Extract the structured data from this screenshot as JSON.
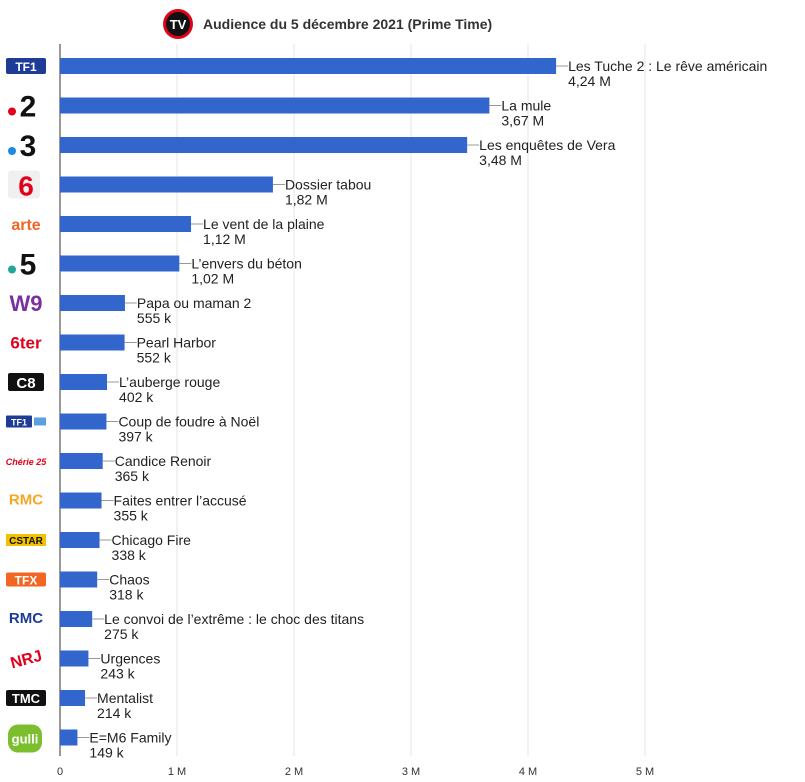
{
  "header": {
    "logo_text": "TV",
    "title": "Audience du 5 décembre 2021 (Prime Time)"
  },
  "colors": {
    "bar": "#3366cc",
    "grid": "#e6e6e6",
    "axis": "#333333",
    "leader": "#999999"
  },
  "chart_data": {
    "type": "bar",
    "orientation": "horizontal",
    "title": "Audience du 5 décembre 2021 (Prime Time)",
    "xlim": [
      0,
      5000000
    ],
    "grid": true,
    "x_ticks": [
      {
        "value": 0,
        "label": "0"
      },
      {
        "value": 1000000,
        "label": "1 M"
      },
      {
        "value": 2000000,
        "label": "2 M"
      },
      {
        "value": 3000000,
        "label": "3 M"
      },
      {
        "value": 4000000,
        "label": "4 M"
      },
      {
        "value": 5000000,
        "label": "5 M"
      }
    ],
    "bars": [
      {
        "channel": "TF1",
        "logo": "tf1-logo",
        "program": "Les Tuche 2 : Le rêve américain",
        "value": 4240000,
        "value_label": "4,24 M"
      },
      {
        "channel": "2",
        "logo": "france2-logo",
        "program": "La mule",
        "value": 3670000,
        "value_label": "3,67 M"
      },
      {
        "channel": "3",
        "logo": "france3-logo",
        "program": "Les enquêtes de Vera",
        "value": 3480000,
        "value_label": "3,48 M"
      },
      {
        "channel": "6",
        "logo": "m6-logo",
        "program": "Dossier tabou",
        "value": 1820000,
        "value_label": "1,82 M"
      },
      {
        "channel": "arte",
        "logo": "arte-logo",
        "program": "Le vent de la plaine",
        "value": 1120000,
        "value_label": "1,12 M"
      },
      {
        "channel": "5",
        "logo": "france5-logo",
        "program": "L’envers du béton",
        "value": 1020000,
        "value_label": "1,02 M"
      },
      {
        "channel": "W9",
        "logo": "w9-logo",
        "program": "Papa ou maman 2",
        "value": 555000,
        "value_label": "555 k"
      },
      {
        "channel": "6ter",
        "logo": "6ter-logo",
        "program": "Pearl Harbor",
        "value": 552000,
        "value_label": "552 k"
      },
      {
        "channel": "C8",
        "logo": "c8-logo",
        "program": "L’auberge rouge",
        "value": 402000,
        "value_label": "402 k"
      },
      {
        "channel": "TF1",
        "logo": "tf1-series-films-logo",
        "program": "Coup de foudre à Noël",
        "value": 397000,
        "value_label": "397 k"
      },
      {
        "channel": "Chérie 25",
        "logo": "cherie25-logo",
        "program": "Candice Renoir",
        "value": 365000,
        "value_label": "365 k"
      },
      {
        "channel": "RMC",
        "logo": "rmc-story-logo",
        "program": "Faites entrer l’accusé",
        "value": 355000,
        "value_label": "355 k"
      },
      {
        "channel": "CSTAR",
        "logo": "cstar-logo",
        "program": "Chicago Fire",
        "value": 338000,
        "value_label": "338 k"
      },
      {
        "channel": "TFX",
        "logo": "tfx-logo",
        "program": "Chaos",
        "value": 318000,
        "value_label": "318 k"
      },
      {
        "channel": "RMC",
        "logo": "rmc-decouverte-logo",
        "program": "Le convoi de l’extrême : le choc des titans",
        "value": 275000,
        "value_label": "275 k"
      },
      {
        "channel": "NRJ",
        "logo": "nrj12-logo",
        "program": "Urgences",
        "value": 243000,
        "value_label": "243 k"
      },
      {
        "channel": "TMC",
        "logo": "tmc-logo",
        "program": "Mentalist",
        "value": 214000,
        "value_label": "214 k"
      },
      {
        "channel": "gulli",
        "logo": "gulli-logo",
        "program": "E=M6 Family",
        "value": 149000,
        "value_label": "149 k"
      }
    ]
  }
}
